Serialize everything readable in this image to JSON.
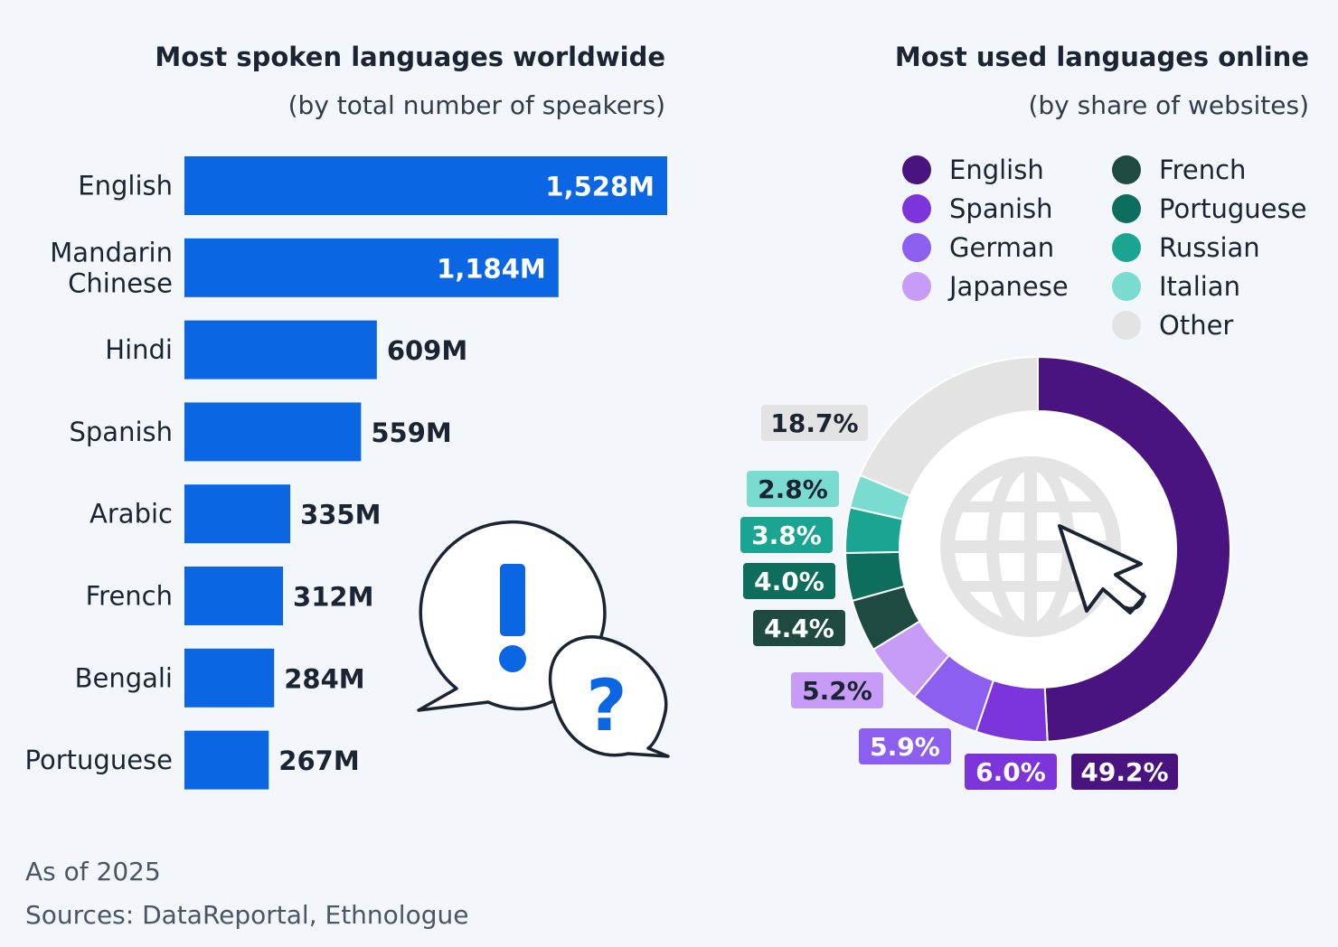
{
  "chart_data": [
    {
      "type": "bar",
      "orientation": "horizontal",
      "title": "Most spoken languages worldwide",
      "subtitle": "(by total number of speakers)",
      "categories": [
        "English",
        "Mandarin Chinese",
        "Hindi",
        "Spanish",
        "Arabic",
        "French",
        "Bengali",
        "Portuguese"
      ],
      "category_lines": [
        [
          "English"
        ],
        [
          "Mandarin",
          "Chinese"
        ],
        [
          "Hindi"
        ],
        [
          "Spanish"
        ],
        [
          "Arabic"
        ],
        [
          "French"
        ],
        [
          "Bengali"
        ],
        [
          "Portuguese"
        ]
      ],
      "values": [
        1528,
        1184,
        609,
        559,
        335,
        312,
        284,
        267
      ],
      "value_labels": [
        "1,528M",
        "1,184M",
        "609M",
        "559M",
        "335M",
        "312M",
        "284M",
        "267M"
      ],
      "units": "M",
      "bar_color": "#0b66e4",
      "xlim": [
        0,
        1528
      ]
    },
    {
      "type": "pie",
      "style": "donut",
      "title": "Most used languages online",
      "subtitle": "(by share of websites)",
      "categories": [
        "English",
        "Spanish",
        "German",
        "Japanese",
        "French",
        "Portuguese",
        "Russian",
        "Italian",
        "Other"
      ],
      "values": [
        49.2,
        6.0,
        5.9,
        5.2,
        4.4,
        4.0,
        3.8,
        2.8,
        18.7
      ],
      "value_labels": [
        "49.2%",
        "6.0%",
        "5.9%",
        "5.2%",
        "4.4%",
        "4.0%",
        "3.8%",
        "2.8%",
        "18.7%"
      ],
      "colors": [
        "#4a1480",
        "#7b35db",
        "#8d5ff0",
        "#c69cf7",
        "#1f4a42",
        "#0d6e5e",
        "#1aa592",
        "#7adcd0",
        "#e3e3e3"
      ],
      "label_text_colors": [
        "#ffffff",
        "#ffffff",
        "#ffffff",
        "#1a2433",
        "#ffffff",
        "#ffffff",
        "#ffffff",
        "#1a2433",
        "#1a2433"
      ],
      "legend_placement": "top-right, two columns",
      "center_icon": "globe-with-cursor-icon"
    }
  ],
  "footer": {
    "date": "As of 2025",
    "sources": "Sources: DataReportal, Ethnologue"
  },
  "decor": {
    "speech_bubbles_icon": "exclamation-question-speech-bubbles-icon",
    "exclamation_color": "#0b66e4",
    "question_color": "#0b66e4"
  }
}
